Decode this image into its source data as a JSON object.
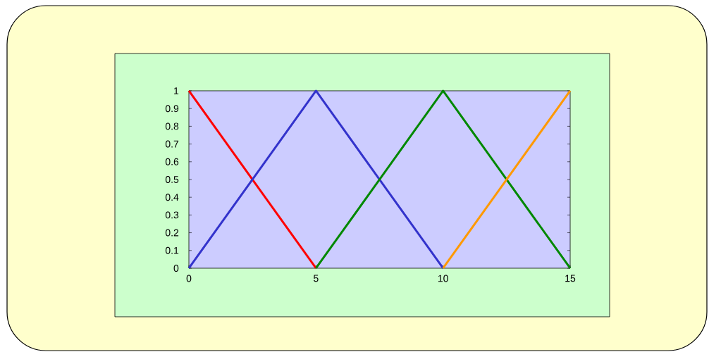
{
  "chart_data": {
    "type": "line",
    "xlim": [
      0,
      15
    ],
    "ylim": [
      0,
      1
    ],
    "xticks": [
      0,
      5,
      10,
      15
    ],
    "yticks": [
      0,
      0.1,
      0.2,
      0.3,
      0.4,
      0.5,
      0.6,
      0.7,
      0.8,
      0.9,
      1
    ],
    "series": [
      {
        "color": "#ff0000",
        "x": [
          0,
          5
        ],
        "values": [
          1,
          0
        ]
      },
      {
        "color": "#3333cc",
        "x": [
          0,
          5,
          10
        ],
        "values": [
          0,
          1,
          0
        ]
      },
      {
        "color": "#008800",
        "x": [
          5,
          10,
          15
        ],
        "values": [
          0,
          1,
          0
        ]
      },
      {
        "color": "#ff9900",
        "x": [
          10,
          15
        ],
        "values": [
          0,
          1
        ]
      }
    ]
  }
}
